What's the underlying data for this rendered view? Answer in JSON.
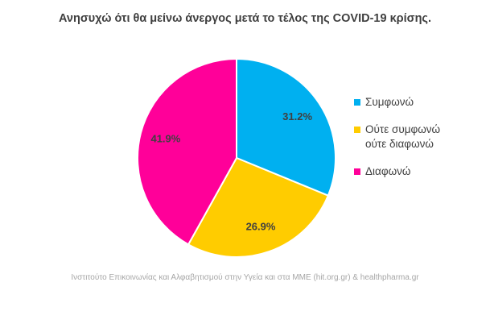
{
  "chart_data": {
    "type": "pie",
    "title": "Ανησυχώ ότι θα μείνω άνεργος μετά το τέλος της COVID-19 κρίσης.",
    "categories": [
      "Συμφωνώ",
      "Ούτε συμφωνώ\nούτε διαφωνώ",
      "Διαφωνώ"
    ],
    "values": [
      31.2,
      26.9,
      41.9
    ],
    "value_labels": [
      "31.2%",
      "26.9%",
      "41.9%"
    ],
    "colors": [
      "#00b0f0",
      "#ffcc00",
      "#ff0099"
    ],
    "legend_position": "right",
    "start_angle_deg": 0,
    "direction": "clockwise"
  },
  "source_note": "Ινστιτούτο Επικοινωνίας και Αλφαβητισμού στην Υγεία και στα ΜΜΕ (hit.org.gr) & healthpharma.gr"
}
